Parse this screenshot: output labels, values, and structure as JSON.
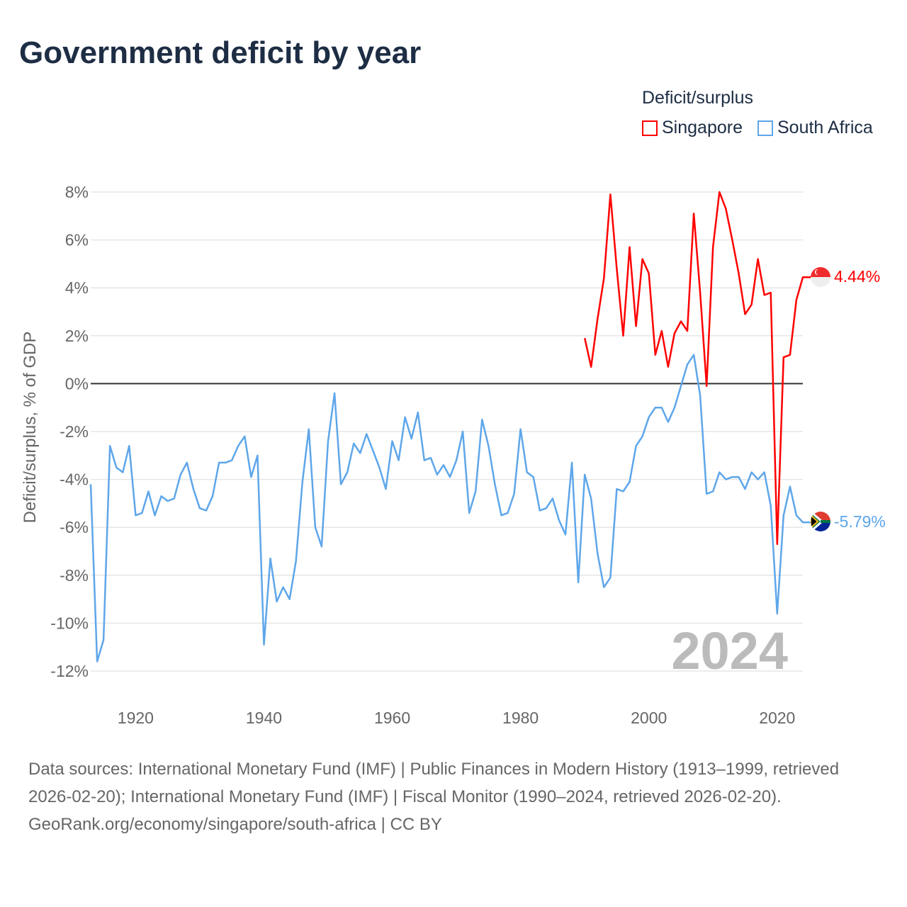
{
  "title": "Government deficit by year",
  "legend": {
    "title": "Deficit/surplus",
    "items": [
      {
        "name": "Singapore",
        "color": "#ff0000"
      },
      {
        "name": "South Africa",
        "color": "#5ea6ea"
      }
    ]
  },
  "watermark_year": "2024",
  "footer": {
    "sources": "Data sources: International Monetary Fund (IMF) | Public Finances in Modern History (1913–1999, retrieved 2026-02-20); International Monetary Fund (IMF) | Fiscal Monitor (1990–2024, retrieved 2026-02-20).",
    "credit": "GeoRank.org/economy/singapore/south-africa | CC BY"
  },
  "chart_data": {
    "type": "line",
    "title": "Government deficit by year",
    "xlabel": "",
    "ylabel": "Deficit/surplus, % of GDP",
    "xlim": [
      1913,
      2024
    ],
    "ylim": [
      -12,
      8
    ],
    "x_ticks": [
      "1920",
      "1940",
      "1960",
      "1980",
      "2000",
      "2020"
    ],
    "x_tick_values": [
      1920,
      1940,
      1960,
      1980,
      2000,
      2020
    ],
    "y_ticks": [
      "8%",
      "6%",
      "4%",
      "2%",
      "0%",
      "-2%",
      "-4%",
      "-6%",
      "-8%",
      "-10%",
      "-12%"
    ],
    "y_tick_values": [
      8,
      6,
      4,
      2,
      0,
      -2,
      -4,
      -6,
      -8,
      -10,
      -12
    ],
    "grid": true,
    "legend_position": "top-right",
    "series": [
      {
        "name": "Singapore",
        "color": "#ff0000",
        "start_year": 1990,
        "end_label": "4.44%",
        "values": [
          1.9,
          0.7,
          2.7,
          4.4,
          7.9,
          4.8,
          2.0,
          5.7,
          2.4,
          5.2,
          4.6,
          1.2,
          2.2,
          0.7,
          2.1,
          2.6,
          2.2,
          7.1,
          3.8,
          -0.1,
          5.7,
          8.0,
          7.3,
          6.0,
          4.6,
          2.9,
          3.3,
          5.2,
          3.7,
          3.8,
          -6.7,
          1.1,
          1.2,
          3.5,
          4.44
        ]
      },
      {
        "name": "South Africa",
        "color": "#5ea6ea",
        "start_year": 1913,
        "end_label": "-5.79%",
        "values": [
          -4.2,
          -11.6,
          -10.7,
          -2.6,
          -3.5,
          -3.7,
          -2.6,
          -5.5,
          -5.4,
          -4.5,
          -5.5,
          -4.7,
          -4.9,
          -4.8,
          -3.8,
          -3.3,
          -4.4,
          -5.2,
          -5.3,
          -4.7,
          -3.3,
          -3.3,
          -3.2,
          -2.6,
          -2.2,
          -3.9,
          -3.0,
          -10.9,
          -7.3,
          -9.1,
          -8.5,
          -9.0,
          -7.4,
          -4.1,
          -1.9,
          -6.0,
          -6.8,
          -2.4,
          -0.4,
          -4.2,
          -3.7,
          -2.5,
          -2.9,
          -2.1,
          -2.8,
          -3.5,
          -4.4,
          -2.4,
          -3.2,
          -1.4,
          -2.3,
          -1.2,
          -3.2,
          -3.1,
          -3.8,
          -3.4,
          -3.9,
          -3.2,
          -2.0,
          -5.4,
          -4.5,
          -1.5,
          -2.6,
          -4.2,
          -5.5,
          -5.4,
          -4.6,
          -1.9,
          -3.7,
          -3.9,
          -5.3,
          -5.2,
          -4.8,
          -5.7,
          -6.3,
          -3.3,
          -8.3,
          -3.8,
          -4.8,
          -7.1,
          -8.5,
          -8.1,
          -4.4,
          -4.5,
          -4.1,
          -2.6,
          -2.2,
          -1.4,
          -1.0,
          -1.0,
          -1.6,
          -1.0,
          -0.1,
          0.8,
          1.2,
          -0.5,
          -4.6,
          -4.5,
          -3.7,
          -4.0,
          -3.9,
          -3.9,
          -4.4,
          -3.7,
          -4.0,
          -3.7,
          -5.1,
          -9.6,
          -5.5,
          -4.3,
          -5.5,
          -5.79
        ]
      }
    ]
  }
}
